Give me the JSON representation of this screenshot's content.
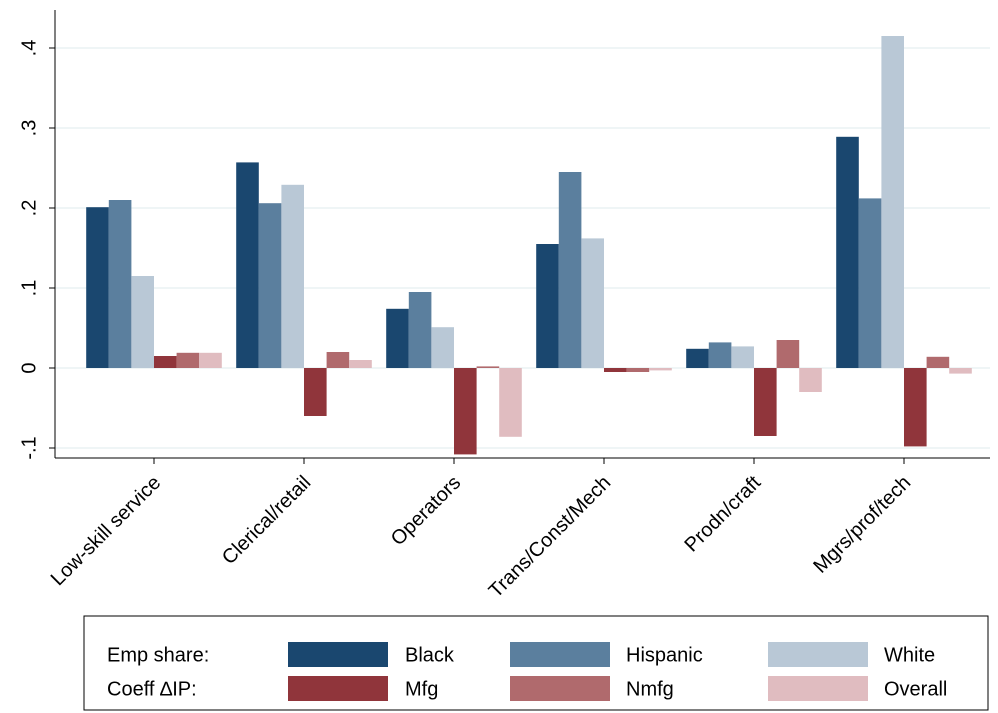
{
  "chart_data": {
    "type": "bar",
    "categories": [
      "Low-skill service",
      "Clerical/retail",
      "Operators",
      "Trans/Const/Mech",
      "Prodn/craft",
      "Mgrs/prof/tech"
    ],
    "series": [
      {
        "name": "Black",
        "color": "#1a476f",
        "values": [
          0.201,
          0.257,
          0.074,
          0.155,
          0.024,
          0.289
        ]
      },
      {
        "name": "Hispanic",
        "color": "#5b7f9e",
        "values": [
          0.21,
          0.206,
          0.095,
          0.245,
          0.032,
          0.212
        ]
      },
      {
        "name": "White",
        "color": "#b9c8d6",
        "values": [
          0.115,
          0.229,
          0.051,
          0.162,
          0.027,
          0.415
        ]
      },
      {
        "name": "Mfg",
        "color": "#90353b",
        "values": [
          0.015,
          -0.06,
          -0.108,
          -0.005,
          -0.085,
          -0.098
        ]
      },
      {
        "name": "Nmfg",
        "color": "#b06a6d",
        "values": [
          0.019,
          0.02,
          0.002,
          -0.005,
          0.035,
          0.014
        ]
      },
      {
        "name": "Overall",
        "color": "#e0bcc0",
        "values": [
          0.019,
          0.01,
          -0.086,
          -0.003,
          -0.03,
          -0.007
        ]
      }
    ],
    "legend_row_labels": [
      "Emp share:",
      "Coeff ∆IP:"
    ],
    "ylim": [
      -0.1125,
      0.4475
    ],
    "yticks": [
      {
        "value": -0.1,
        "label": "-.1"
      },
      0,
      {
        "value": 0.1,
        "label": ".1"
      },
      {
        "value": 0.2,
        "label": ".2"
      },
      {
        "value": 0.3,
        "label": ".3"
      },
      {
        "value": 0.4,
        "label": ".4"
      }
    ],
    "grid": true
  }
}
